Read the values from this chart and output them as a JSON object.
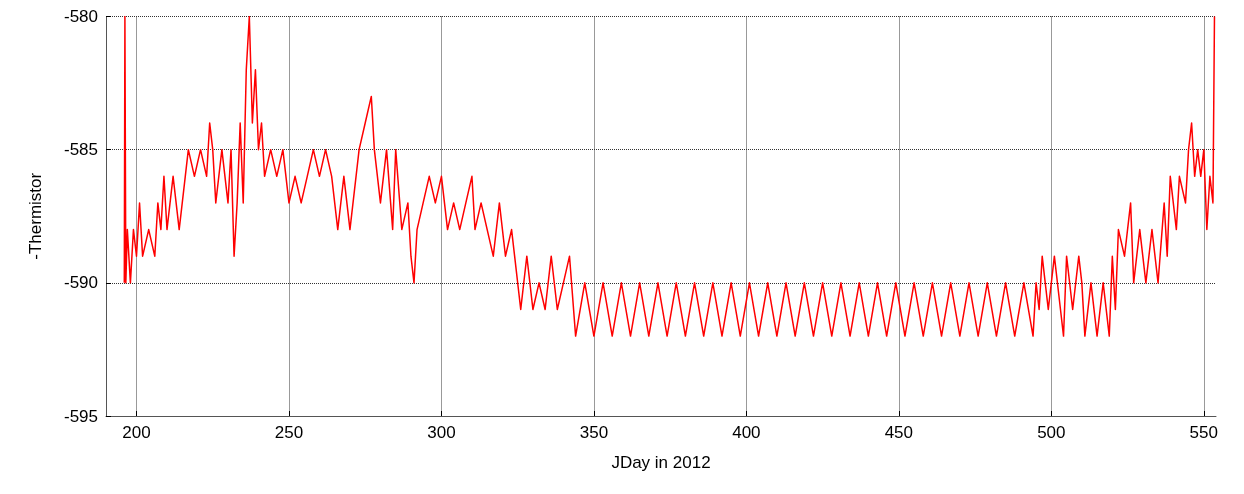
{
  "chart_data": {
    "type": "line",
    "xlabel": "JDay in 2012",
    "ylabel": "-Thermistor",
    "xlim": [
      190,
      554
    ],
    "ylim": [
      -595,
      -580
    ],
    "xticks": [
      200,
      250,
      300,
      350,
      400,
      450,
      500,
      550
    ],
    "yticks": [
      -595,
      -590,
      -585,
      -580
    ],
    "grid": true,
    "marker": "none",
    "line_style": "solid",
    "series": [
      {
        "color": "#ff0000",
        "x": [
          196,
          196.2,
          196.5,
          197,
          198,
          199,
          200,
          201,
          202,
          204,
          206,
          207,
          208,
          209,
          210,
          212,
          214,
          216,
          217,
          219,
          221,
          223,
          224,
          225,
          226,
          228,
          230,
          231,
          232,
          233,
          234,
          235,
          236,
          237,
          238,
          239,
          240,
          241,
          242,
          244,
          246,
          248,
          250,
          252,
          254,
          256,
          258,
          260,
          262,
          264,
          266,
          268,
          270,
          272,
          273,
          275,
          277,
          278,
          280,
          282,
          284,
          285,
          287,
          289,
          290,
          291,
          292,
          294,
          296,
          298,
          300,
          302,
          304,
          306,
          308,
          310,
          311,
          313,
          315,
          317,
          319,
          321,
          323,
          324,
          326,
          328,
          330,
          332,
          334,
          336,
          338,
          340,
          342,
          344,
          347,
          350,
          353,
          356,
          359,
          362,
          365,
          368,
          371,
          374,
          377,
          380,
          383,
          386,
          389,
          392,
          395,
          398,
          401,
          404,
          407,
          410,
          413,
          416,
          419,
          422,
          425,
          428,
          431,
          434,
          437,
          440,
          443,
          446,
          449,
          452,
          455,
          458,
          461,
          464,
          467,
          470,
          473,
          476,
          479,
          482,
          485,
          488,
          491,
          494,
          495,
          496,
          497,
          499,
          501,
          503,
          504,
          505,
          507,
          509,
          510,
          511,
          513,
          515,
          517,
          519,
          520,
          521,
          522,
          524,
          526,
          527,
          529,
          531,
          533,
          535,
          537,
          538,
          539,
          541,
          542,
          544,
          545,
          546,
          547,
          548,
          549,
          550,
          551,
          552,
          553,
          553.5
        ],
        "values": [
          -590,
          -580,
          -590,
          -588,
          -590,
          -588,
          -589,
          -587,
          -589,
          -588,
          -589,
          -587,
          -588,
          -586,
          -588,
          -586,
          -588,
          -586,
          -585,
          -586,
          -585,
          -586,
          -584,
          -585,
          -587,
          -585,
          -587,
          -585,
          -589,
          -587,
          -584,
          -587,
          -582,
          -580,
          -584,
          -582,
          -585,
          -584,
          -586,
          -585,
          -586,
          -585,
          -587,
          -586,
          -587,
          -586,
          -585,
          -586,
          -585,
          -586,
          -588,
          -586,
          -588,
          -586,
          -585,
          -584,
          -583,
          -585,
          -587,
          -585,
          -588,
          -585,
          -588,
          -587,
          -589,
          -590,
          -588,
          -587,
          -586,
          -587,
          -586,
          -588,
          -587,
          -588,
          -587,
          -586,
          -588,
          -587,
          -588,
          -589,
          -587,
          -589,
          -588,
          -589,
          -591,
          -589,
          -591,
          -590,
          -591,
          -589,
          -591,
          -590,
          -589,
          -592,
          -590,
          -592,
          -590,
          -592,
          -590,
          -592,
          -590,
          -592,
          -590,
          -592,
          -590,
          -592,
          -590,
          -592,
          -590,
          -592,
          -590,
          -592,
          -590,
          -592,
          -590,
          -592,
          -590,
          -592,
          -590,
          -592,
          -590,
          -592,
          -590,
          -592,
          -590,
          -592,
          -590,
          -592,
          -590,
          -592,
          -590,
          -592,
          -590,
          -592,
          -590,
          -592,
          -590,
          -592,
          -590,
          -592,
          -590,
          -592,
          -590,
          -592,
          -590,
          -591,
          -589,
          -591,
          -589,
          -591,
          -592,
          -589,
          -591,
          -589,
          -590,
          -592,
          -590,
          -592,
          -590,
          -592,
          -589,
          -591,
          -588,
          -589,
          -587,
          -590,
          -588,
          -590,
          -588,
          -590,
          -587,
          -589,
          -586,
          -588,
          -586,
          -587,
          -585,
          -584,
          -586,
          -585,
          -586,
          -585,
          -588,
          -586,
          -587,
          -580
        ]
      }
    ]
  }
}
